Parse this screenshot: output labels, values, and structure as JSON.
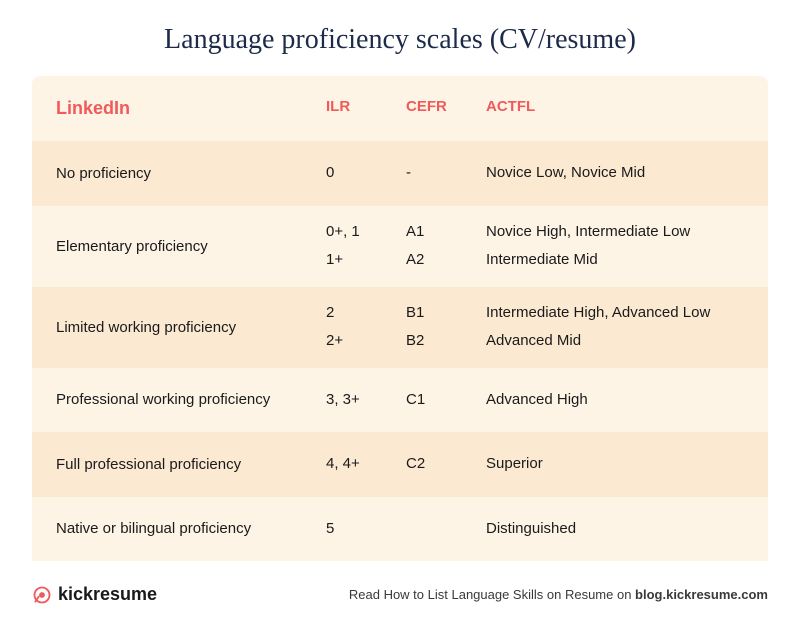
{
  "title": "Language proficiency scales (CV/resume)",
  "colors": {
    "title": "#1c2b4a",
    "header_text": "#f05a5a",
    "row_alt_a": "#fdf4e6",
    "row_alt_b": "#fbe9d2",
    "body_text": "#1a1a1a",
    "logo_accent": "#f05a5a"
  },
  "table": {
    "headers": {
      "linkedin": "LinkedIn",
      "ilr": "ILR",
      "cefr": "CEFR",
      "actfl": "ACTFL"
    },
    "rows": [
      {
        "bg": "a",
        "linkedin": "No proficiency",
        "ilr": [
          "0"
        ],
        "cefr": [
          "-"
        ],
        "actfl": [
          "Novice Low, Novice Mid"
        ]
      },
      {
        "bg": "b",
        "linkedin": "Elementary proficiency",
        "ilr": [
          "0+, 1",
          "1+"
        ],
        "cefr": [
          "A1",
          "A2"
        ],
        "actfl": [
          "Novice High, Intermediate Low",
          "Intermediate Mid"
        ]
      },
      {
        "bg": "a",
        "linkedin": "Limited working proficiency",
        "ilr": [
          "2",
          "2+"
        ],
        "cefr": [
          "B1",
          "B2"
        ],
        "actfl": [
          "Intermediate High, Advanced Low",
          "Advanced Mid"
        ]
      },
      {
        "bg": "b",
        "linkedin": "Professional working proficiency",
        "ilr": [
          "3, 3+"
        ],
        "cefr": [
          "C1"
        ],
        "actfl": [
          "Advanced High"
        ]
      },
      {
        "bg": "a",
        "linkedin": "Full professional proficiency",
        "ilr": [
          "4, 4+"
        ],
        "cefr": [
          "C2"
        ],
        "actfl": [
          "Superior"
        ]
      },
      {
        "bg": "b",
        "linkedin": "Native or bilingual proficiency",
        "ilr": [
          "5"
        ],
        "cefr": [
          ""
        ],
        "actfl": [
          "Distinguished"
        ]
      }
    ]
  },
  "footer": {
    "logo_text": "kickresume",
    "attribution_prefix": "Read How to List Language Skills on Resume on ",
    "attribution_bold": "blog.kickresume.com"
  }
}
